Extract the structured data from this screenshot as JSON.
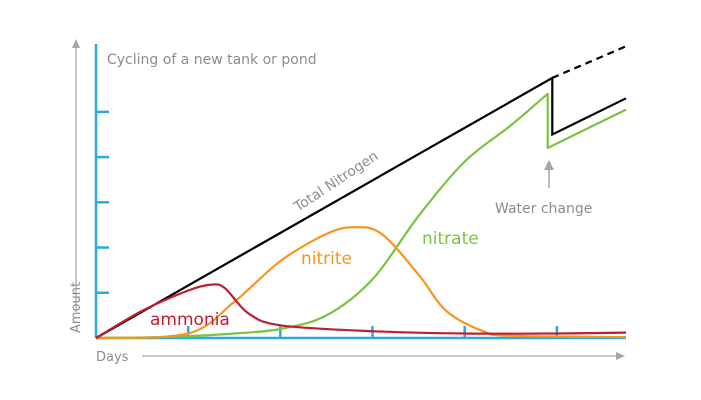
{
  "chart_data": {
    "type": "line",
    "title": "Cycling of a new tank or pond",
    "xlabel": "Days",
    "ylabel": "Amount",
    "xlim": [
      0,
      5.75
    ],
    "ylim": [
      0,
      6.5
    ],
    "grid": false,
    "legend": "none",
    "x_ticks": [
      1,
      2,
      3,
      4,
      5
    ],
    "y_ticks": [
      1,
      2,
      3,
      4,
      5
    ],
    "series": [
      {
        "name": "Total Nitrogen",
        "color": "#000000",
        "segments": [
          {
            "style": "solid",
            "points": [
              [
                0,
                0
              ],
              [
                4.95,
                5.75
              ],
              [
                4.95,
                4.5
              ],
              [
                5.75,
                5.3
              ]
            ]
          },
          {
            "style": "dashed",
            "points": [
              [
                4.95,
                5.75
              ],
              [
                5.75,
                6.45
              ]
            ]
          }
        ]
      },
      {
        "name": "nitrate",
        "color": "#7cc242",
        "points": [
          [
            0,
            0
          ],
          [
            0.5,
            0.01
          ],
          [
            1,
            0.04
          ],
          [
            1.5,
            0.1
          ],
          [
            2,
            0.2
          ],
          [
            2.5,
            0.5
          ],
          [
            3,
            1.3
          ],
          [
            3.5,
            2.7
          ],
          [
            4,
            3.9
          ],
          [
            4.5,
            4.7
          ],
          [
            4.9,
            5.4
          ],
          [
            4.9,
            4.2
          ],
          [
            5.75,
            5.05
          ]
        ]
      },
      {
        "name": "nitrite",
        "color": "#f7941e",
        "points": [
          [
            0,
            0
          ],
          [
            1,
            0.1
          ],
          [
            1.5,
            0.8
          ],
          [
            2,
            1.7
          ],
          [
            2.5,
            2.3
          ],
          [
            2.8,
            2.45
          ],
          [
            3.1,
            2.3
          ],
          [
            3.5,
            1.4
          ],
          [
            3.8,
            0.6
          ],
          [
            4.2,
            0.15
          ],
          [
            4.5,
            0.05
          ],
          [
            5.75,
            0.02
          ]
        ]
      },
      {
        "name": "ammonia",
        "color": "#be1e2d",
        "points": [
          [
            0,
            0
          ],
          [
            0.5,
            0.6
          ],
          [
            1,
            1.05
          ],
          [
            1.25,
            1.18
          ],
          [
            1.4,
            1.1
          ],
          [
            1.65,
            0.55
          ],
          [
            2,
            0.28
          ],
          [
            3,
            0.15
          ],
          [
            4,
            0.1
          ],
          [
            5,
            0.1
          ],
          [
            5.75,
            0.12
          ]
        ]
      }
    ],
    "annotations": {
      "total_nitrogen": "Total Nitrogen",
      "nitrite": "nitrite",
      "nitrate": "nitrate",
      "ammonia": "ammonia",
      "water_change": "Water change"
    },
    "colors": {
      "axis": "#29abe2",
      "arrow": "#a6a6a6",
      "label": "#8c8c8c"
    }
  }
}
